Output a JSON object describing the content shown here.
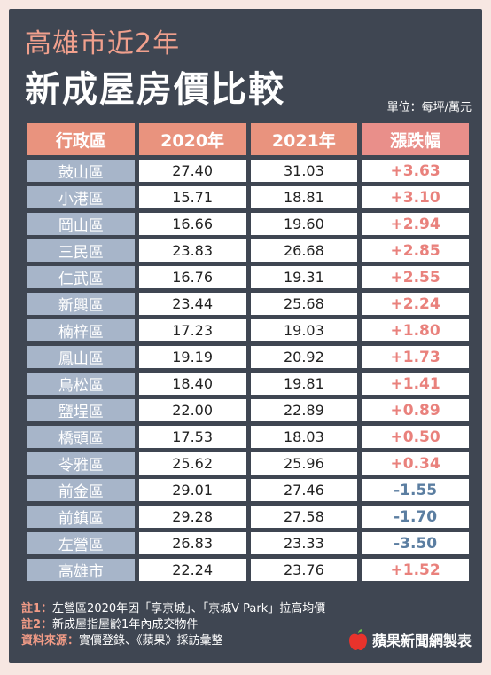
{
  "header": {
    "title_line1": "高雄市近2年",
    "title_line2": "新成屋房價比較",
    "unit": "單位：每坪/萬元"
  },
  "table": {
    "columns": [
      "行政區",
      "2020年",
      "2021年",
      "漲跌幅"
    ],
    "rows": [
      {
        "district": "鼓山區",
        "y2020": "27.40",
        "y2021": "31.03",
        "change": "+3.63"
      },
      {
        "district": "小港區",
        "y2020": "15.71",
        "y2021": "18.81",
        "change": "+3.10"
      },
      {
        "district": "岡山區",
        "y2020": "16.66",
        "y2021": "19.60",
        "change": "+2.94"
      },
      {
        "district": "三民區",
        "y2020": "23.83",
        "y2021": "26.68",
        "change": "+2.85"
      },
      {
        "district": "仁武區",
        "y2020": "16.76",
        "y2021": "19.31",
        "change": "+2.55"
      },
      {
        "district": "新興區",
        "y2020": "23.44",
        "y2021": "25.68",
        "change": "+2.24"
      },
      {
        "district": "楠梓區",
        "y2020": "17.23",
        "y2021": "19.03",
        "change": "+1.80"
      },
      {
        "district": "鳳山區",
        "y2020": "19.19",
        "y2021": "20.92",
        "change": "+1.73"
      },
      {
        "district": "鳥松區",
        "y2020": "18.40",
        "y2021": "19.81",
        "change": "+1.41"
      },
      {
        "district": "鹽埕區",
        "y2020": "22.00",
        "y2021": "22.89",
        "change": "+0.89"
      },
      {
        "district": "橋頭區",
        "y2020": "17.53",
        "y2021": "18.03",
        "change": "+0.50"
      },
      {
        "district": "苓雅區",
        "y2020": "25.62",
        "y2021": "25.96",
        "change": "+0.34"
      },
      {
        "district": "前金區",
        "y2020": "29.01",
        "y2021": "27.46",
        "change": "-1.55"
      },
      {
        "district": "前鎮區",
        "y2020": "29.28",
        "y2021": "27.58",
        "change": "-1.70"
      },
      {
        "district": "左營區",
        "y2020": "26.83",
        "y2021": "23.33",
        "change": "-3.50"
      },
      {
        "district": "高雄市",
        "y2020": "22.24",
        "y2021": "23.76",
        "change": "+1.52"
      }
    ]
  },
  "chart_data": {
    "type": "table",
    "title": "高雄市近2年 新成屋房價比較",
    "unit": "單位：每坪/萬元",
    "columns": [
      "行政區",
      "2020年",
      "2021年",
      "漲跌幅"
    ],
    "categories": [
      "鼓山區",
      "小港區",
      "岡山區",
      "三民區",
      "仁武區",
      "新興區",
      "楠梓區",
      "鳳山區",
      "鳥松區",
      "鹽埕區",
      "橋頭區",
      "苓雅區",
      "前金區",
      "前鎮區",
      "左營區",
      "高雄市"
    ],
    "series": [
      {
        "name": "2020年",
        "values": [
          27.4,
          15.71,
          16.66,
          23.83,
          16.76,
          23.44,
          17.23,
          19.19,
          18.4,
          22.0,
          17.53,
          25.62,
          29.01,
          29.28,
          26.83,
          22.24
        ]
      },
      {
        "name": "2021年",
        "values": [
          31.03,
          18.81,
          19.6,
          26.68,
          19.31,
          25.68,
          19.03,
          20.92,
          19.81,
          22.89,
          18.03,
          25.96,
          27.46,
          27.58,
          23.33,
          23.76
        ]
      },
      {
        "name": "漲跌幅",
        "values": [
          3.63,
          3.1,
          2.94,
          2.85,
          2.55,
          2.24,
          1.8,
          1.73,
          1.41,
          0.89,
          0.5,
          0.34,
          -1.55,
          -1.7,
          -3.5,
          1.52
        ]
      }
    ]
  },
  "notes": [
    {
      "label": "註1：",
      "text": "左營區2020年因「享京城」、「京城V Park」拉高均價"
    },
    {
      "label": "註2：",
      "text": "新成屋指屋齡1年內成交物件"
    },
    {
      "label": "資料來源：",
      "text": "實價登錄、《蘋果》採訪彙整"
    }
  ],
  "brand": {
    "name": "蘋果新聞網製表",
    "icon": "apple-logo-icon"
  },
  "colors": {
    "background": "#3f4652",
    "header_cell": "#e9937e",
    "district_cell": "#a7b5c9",
    "positive": "#e9817c",
    "negative": "#5b7ea1",
    "title_accent": "#f1a08d"
  }
}
